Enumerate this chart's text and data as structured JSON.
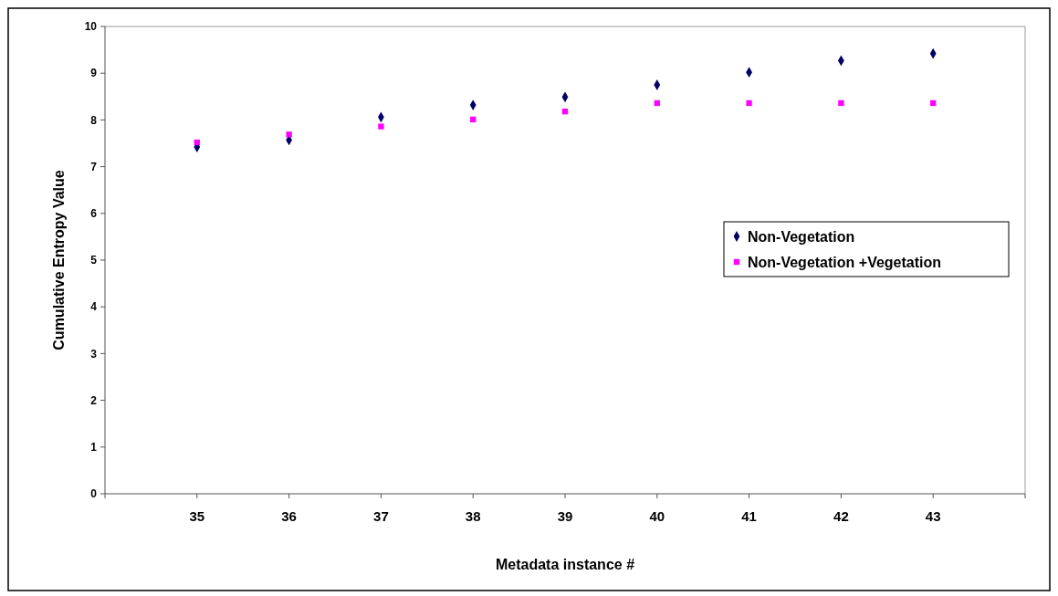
{
  "chart_data": {
    "type": "scatter",
    "xlabel": "Metadata instance #",
    "ylabel": "Cumulative Entropy Value",
    "x": [
      35,
      36,
      37,
      38,
      39,
      40,
      41,
      42,
      43
    ],
    "series": [
      {
        "name": "Non-Vegetation",
        "color": "#000066",
        "marker": "diamond",
        "values": [
          7.42,
          7.57,
          8.06,
          8.32,
          8.49,
          8.75,
          9.02,
          9.27,
          9.42
        ]
      },
      {
        "name": "Non-Vegetation +Vegetation",
        "color": "#ff00ff",
        "marker": "square",
        "values": [
          7.52,
          7.69,
          7.86,
          8.01,
          8.18,
          8.36,
          8.36,
          8.36,
          8.36
        ]
      }
    ],
    "xlim": [
      34,
      44
    ],
    "xticks": [
      {
        "value": 34,
        "label": null
      },
      35,
      36,
      37,
      38,
      39,
      40,
      41,
      42,
      43,
      {
        "value": 44,
        "label": null
      }
    ],
    "ylim": [
      0,
      10
    ],
    "yticks": [
      0,
      1,
      2,
      3,
      4,
      5,
      6,
      7,
      8,
      9,
      10
    ],
    "grid": false,
    "legend": "right"
  }
}
